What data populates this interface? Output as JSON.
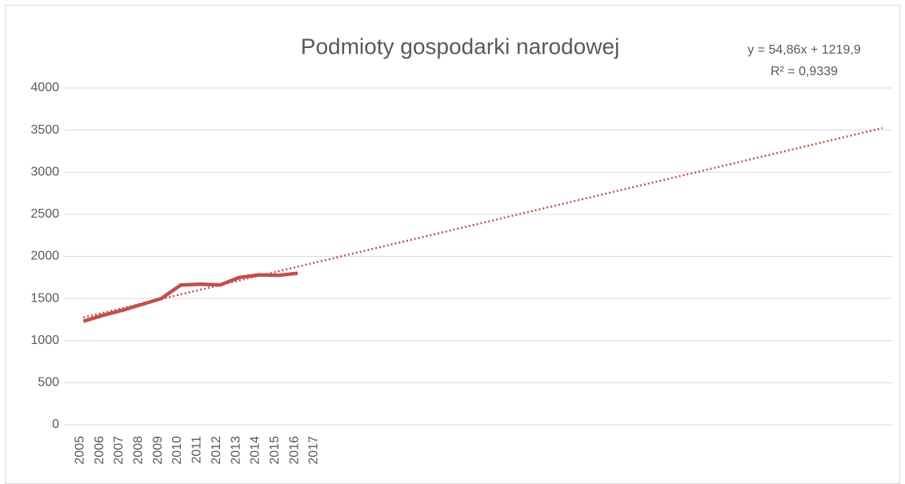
{
  "chart_data": {
    "type": "line",
    "title": "Podmioty gospodarki narodowej",
    "categories": [
      "2005",
      "2006",
      "2007",
      "2008",
      "2009",
      "2010",
      "2011",
      "2012",
      "2013",
      "2014",
      "2015",
      "2016",
      "2017",
      null,
      null,
      null,
      null,
      null,
      null,
      null,
      null,
      null,
      null,
      null,
      null,
      null,
      null,
      null,
      null,
      null,
      null,
      null,
      null,
      null,
      null,
      null,
      null,
      null,
      null,
      null,
      null,
      null
    ],
    "series": [
      {
        "name": null,
        "color": "#c0504d",
        "values": [
          1230,
          1300,
          1360,
          1430,
          1500,
          1660,
          1670,
          1660,
          1750,
          1780,
          1775,
          1800,
          null,
          null,
          null,
          null,
          null,
          null,
          null,
          null,
          null,
          null,
          null,
          null,
          null,
          null,
          null,
          null,
          null,
          null,
          null,
          null,
          null,
          null,
          null,
          null,
          null,
          null,
          null,
          null,
          null,
          null
        ]
      }
    ],
    "trendline": {
      "slope": 54.86,
      "intercept": 1219.9,
      "equation": "y = 54,86x + 1219,9",
      "r2": "R² = 0,9339",
      "color": "#c0504d"
    },
    "ylim": [
      0,
      4000
    ],
    "yticks": [
      0,
      500,
      1000,
      1500,
      2000,
      2500,
      3000,
      3500,
      4000
    ],
    "grid": true
  }
}
